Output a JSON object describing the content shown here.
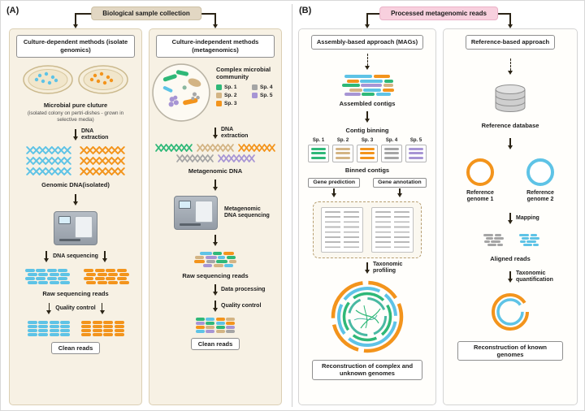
{
  "colors": {
    "blue": "#5ec3e6",
    "orange": "#f3941c",
    "green": "#2fb878",
    "tan": "#d3b484",
    "gray": "#a5a5a5",
    "purple": "#a795d4",
    "teal": "#49b9a2",
    "arrow": "#2b2416",
    "panel_a_bg": "#f7f1e4",
    "pill_a_bg": "#e2d7c3",
    "pill_b_bg": "#f8d0de",
    "pad": "transparent"
  },
  "species": [
    {
      "label": "Sp. 1",
      "color": "#2fb878"
    },
    {
      "label": "Sp. 2",
      "color": "#d3b484"
    },
    {
      "label": "Sp. 3",
      "color": "#f3941c"
    },
    {
      "label": "Sp. 4",
      "color": "#a5a5a5"
    },
    {
      "label": "Sp. 5",
      "color": "#a795d4"
    }
  ],
  "panelA": {
    "label": "(A)",
    "header": "Biological sample collection",
    "culture_dependent": {
      "title": "Culture-dependent methods (isolate genomics)",
      "microbial_pure_culture": "Microbial pure cluture",
      "culture_note": "(isolated colony on pertri-dishes - grown in selective media)",
      "dna_extraction": "DNA extraction",
      "genomic_dna": "Genomic DNA(isolated)",
      "dna_sequencing": "DNA sequencing",
      "raw_reads": "Raw sequencing reads",
      "quality_control": "Quality control",
      "clean_reads": "Clean reads"
    },
    "culture_independent": {
      "title": "Culture-independent methods (metagenomics)",
      "community": "Complex microbial community",
      "dna_extraction": "DNA extraction",
      "metagenomic_dna": "Metagenomic DNA",
      "metagenomic_sequencing": "Metagenomic DNA sequencing",
      "raw_reads": "Raw sequencing reads",
      "data_processing": "Data processing",
      "quality_control": "Quality control",
      "clean_reads": "Clean reads"
    }
  },
  "panelB": {
    "label": "(B)",
    "header": "Processed metagenomic reads",
    "assembly": {
      "title": "Assembly-based approach (MAGs)",
      "assembled_contigs": "Assembled contigs",
      "contig_binning": "Contig binning",
      "binned_contigs": "Binned contigs",
      "gene_prediction": "Gene prediction",
      "gene_annotation": "Gene annotation",
      "taxonomic_profiling": "Taxonomic profiling",
      "caption": "Reconstruction of complex and unknown genomes"
    },
    "reference": {
      "title": "Reference-based approach",
      "reference_database": "Reference database",
      "genome1": "Reference genome 1",
      "genome2": "Reference genome 2",
      "mapping": "Mapping",
      "aligned_reads": "Aligned reads",
      "taxonomic_quantification": "Taxonomic quantification",
      "caption": "Reconstruction of known genomes"
    }
  }
}
